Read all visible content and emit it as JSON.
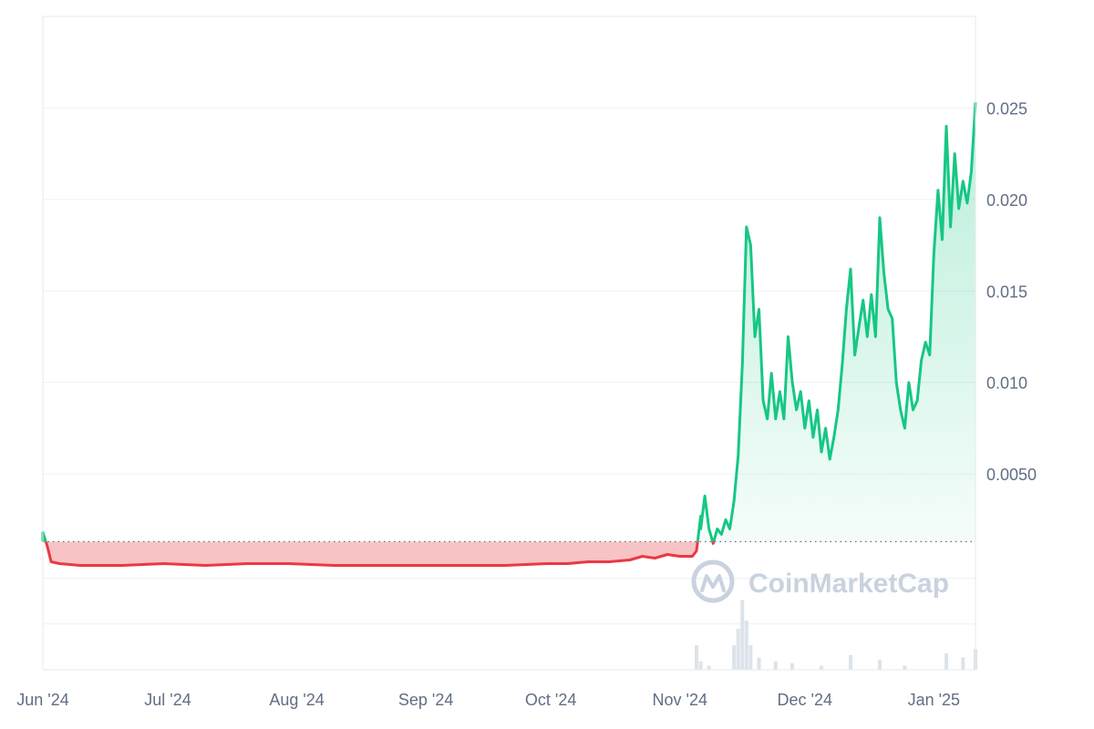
{
  "watermark": "CoinMarketCap",
  "colors": {
    "up": "#16c784",
    "down": "#ea3943",
    "up_fill_top": "#16c784",
    "down_fill": "#f6b4b7",
    "grid": "#eef0f3",
    "tick_text": "#616e85",
    "volume": "#dde3ea",
    "watermark": "#c9d2de"
  },
  "chart_data": {
    "type": "area",
    "title": "",
    "xlabel": "",
    "ylabel": "",
    "baseline": 0.0013,
    "ylim": [
      -0.0057,
      0.03
    ],
    "y_ticks": [
      {
        "value": 0.005,
        "label": "0.0050"
      },
      {
        "value": 0.01,
        "label": "0.010"
      },
      {
        "value": 0.015,
        "label": "0.015"
      },
      {
        "value": 0.02,
        "label": "0.020"
      },
      {
        "value": 0.025,
        "label": "0.025"
      }
    ],
    "x_ticks": [
      {
        "date": "2024-06-01",
        "label": "Jun '24"
      },
      {
        "date": "2024-07-01",
        "label": "Jul '24"
      },
      {
        "date": "2024-08-01",
        "label": "Aug '24"
      },
      {
        "date": "2024-09-01",
        "label": "Sep '24"
      },
      {
        "date": "2024-10-01",
        "label": "Oct '24"
      },
      {
        "date": "2024-11-01",
        "label": "Nov '24"
      },
      {
        "date": "2024-12-01",
        "label": "Dec '24"
      },
      {
        "date": "2025-01-01",
        "label": "Jan '25"
      }
    ],
    "series": [
      {
        "points": [
          [
            "2024-06-01",
            0.0013
          ],
          [
            "2024-06-01",
            0.0018
          ],
          [
            "2024-06-02",
            0.0011
          ],
          [
            "2024-06-03",
            0.0002
          ],
          [
            "2024-06-05",
            0.0001
          ],
          [
            "2024-06-10",
            0.0
          ],
          [
            "2024-06-20",
            0.0
          ],
          [
            "2024-06-30",
            0.0001
          ],
          [
            "2024-07-10",
            0.0
          ],
          [
            "2024-07-20",
            0.0001
          ],
          [
            "2024-07-30",
            0.0001
          ],
          [
            "2024-08-10",
            0.0
          ],
          [
            "2024-08-20",
            0.0
          ],
          [
            "2024-08-31",
            0.0
          ],
          [
            "2024-09-10",
            0.0
          ],
          [
            "2024-09-20",
            0.0
          ],
          [
            "2024-09-30",
            0.0001
          ],
          [
            "2024-10-05",
            0.0001
          ],
          [
            "2024-10-10",
            0.0002
          ],
          [
            "2024-10-15",
            0.0002
          ],
          [
            "2024-10-20",
            0.0003
          ],
          [
            "2024-10-23",
            0.0005
          ],
          [
            "2024-10-26",
            0.0004
          ],
          [
            "2024-10-29",
            0.0006
          ],
          [
            "2024-11-01",
            0.0005
          ],
          [
            "2024-11-04",
            0.0005
          ],
          [
            "2024-11-05",
            0.0008
          ],
          [
            "2024-11-06",
            0.0027
          ],
          [
            "2024-11-06",
            0.002
          ],
          [
            "2024-11-07",
            0.0038
          ],
          [
            "2024-11-08",
            0.002
          ],
          [
            "2024-11-09",
            0.0012
          ],
          [
            "2024-11-10",
            0.002
          ],
          [
            "2024-11-11",
            0.0017
          ],
          [
            "2024-11-12",
            0.0025
          ],
          [
            "2024-11-13",
            0.002
          ],
          [
            "2024-11-14",
            0.0035
          ],
          [
            "2024-11-15",
            0.006
          ],
          [
            "2024-11-16",
            0.011
          ],
          [
            "2024-11-17",
            0.0185
          ],
          [
            "2024-11-18",
            0.0175
          ],
          [
            "2024-11-19",
            0.0125
          ],
          [
            "2024-11-20",
            0.014
          ],
          [
            "2024-11-21",
            0.009
          ],
          [
            "2024-11-22",
            0.008
          ],
          [
            "2024-11-23",
            0.0105
          ],
          [
            "2024-11-24",
            0.008
          ],
          [
            "2024-11-25",
            0.0095
          ],
          [
            "2024-11-26",
            0.008
          ],
          [
            "2024-11-27",
            0.0125
          ],
          [
            "2024-11-28",
            0.01
          ],
          [
            "2024-11-29",
            0.0085
          ],
          [
            "2024-11-30",
            0.0095
          ],
          [
            "2024-12-01",
            0.0075
          ],
          [
            "2024-12-02",
            0.009
          ],
          [
            "2024-12-03",
            0.007
          ],
          [
            "2024-12-04",
            0.0085
          ],
          [
            "2024-12-05",
            0.0062
          ],
          [
            "2024-12-06",
            0.0075
          ],
          [
            "2024-12-07",
            0.0058
          ],
          [
            "2024-12-08",
            0.007
          ],
          [
            "2024-12-09",
            0.0085
          ],
          [
            "2024-12-10",
            0.011
          ],
          [
            "2024-12-11",
            0.014
          ],
          [
            "2024-12-12",
            0.0162
          ],
          [
            "2024-12-13",
            0.0115
          ],
          [
            "2024-12-14",
            0.013
          ],
          [
            "2024-12-15",
            0.0145
          ],
          [
            "2024-12-16",
            0.0125
          ],
          [
            "2024-12-17",
            0.0148
          ],
          [
            "2024-12-18",
            0.0125
          ],
          [
            "2024-12-19",
            0.019
          ],
          [
            "2024-12-20",
            0.016
          ],
          [
            "2024-12-21",
            0.014
          ],
          [
            "2024-12-22",
            0.0135
          ],
          [
            "2024-12-23",
            0.01
          ],
          [
            "2024-12-24",
            0.0085
          ],
          [
            "2024-12-25",
            0.0075
          ],
          [
            "2024-12-26",
            0.01
          ],
          [
            "2024-12-27",
            0.0085
          ],
          [
            "2024-12-28",
            0.009
          ],
          [
            "2024-12-29",
            0.0112
          ],
          [
            "2024-12-30",
            0.0122
          ],
          [
            "2024-12-31",
            0.0115
          ],
          [
            "2025-01-01",
            0.017
          ],
          [
            "2025-01-02",
            0.0205
          ],
          [
            "2025-01-03",
            0.0178
          ],
          [
            "2025-01-04",
            0.024
          ],
          [
            "2025-01-05",
            0.0185
          ],
          [
            "2025-01-06",
            0.0225
          ],
          [
            "2025-01-07",
            0.0195
          ],
          [
            "2025-01-08",
            0.021
          ],
          [
            "2025-01-09",
            0.0198
          ],
          [
            "2025-01-10",
            0.0215
          ],
          [
            "2025-01-11",
            0.0253
          ]
        ]
      }
    ],
    "volume": [
      [
        "2024-11-05",
        0.3
      ],
      [
        "2024-11-06",
        0.1
      ],
      [
        "2024-11-08",
        0.05
      ],
      [
        "2024-11-14",
        0.3
      ],
      [
        "2024-11-15",
        0.5
      ],
      [
        "2024-11-16",
        0.85
      ],
      [
        "2024-11-17",
        0.6
      ],
      [
        "2024-11-18",
        0.3
      ],
      [
        "2024-11-20",
        0.15
      ],
      [
        "2024-11-24",
        0.1
      ],
      [
        "2024-11-28",
        0.08
      ],
      [
        "2024-12-05",
        0.05
      ],
      [
        "2024-12-12",
        0.18
      ],
      [
        "2024-12-19",
        0.12
      ],
      [
        "2024-12-25",
        0.05
      ],
      [
        "2025-01-04",
        0.2
      ],
      [
        "2025-01-08",
        0.15
      ],
      [
        "2025-01-11",
        0.25
      ]
    ]
  }
}
